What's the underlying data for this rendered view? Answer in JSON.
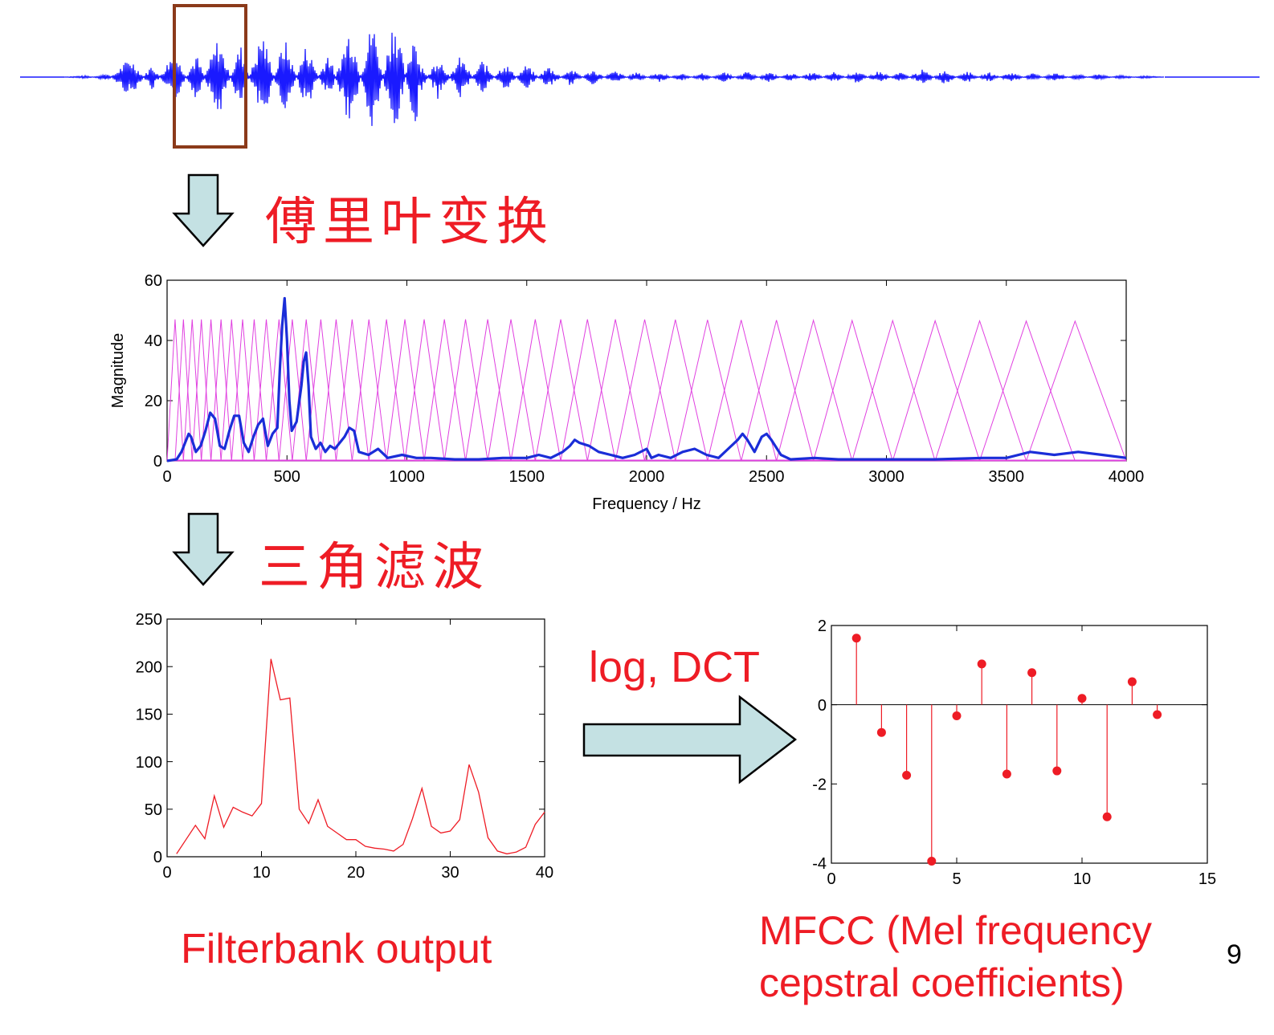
{
  "labels": {
    "fourier": "傅里叶变换",
    "triangle": "三角滤波",
    "log_dct": "log, DCT",
    "filterbank": "Filterbank output",
    "mfcc_line1": "MFCC (Mel frequency",
    "mfcc_line2": "cepstral coefficients)",
    "page_number": "9"
  },
  "colors": {
    "waveform": "#1a1aff",
    "window_box": "#8b3a1a",
    "arrow_fill": "#c4e1e3",
    "spectrum": "#1a2dd8",
    "filters": "#e040e0",
    "red": "#ee1c25"
  },
  "chart_data": [
    {
      "type": "line",
      "xlabel": "",
      "ylabel": "",
      "series": [
        {
          "values": [
            0,
            0.02,
            -0.05,
            0.3,
            -0.2,
            0.4,
            -0.35,
            0.6,
            -0.5,
            0.7,
            -0.6,
            0.5,
            -0.4,
            0.8,
            -0.9,
            1.0,
            -0.95,
            0.9,
            -0.85,
            0.7,
            -0.6,
            0.5,
            -0.45,
            0.35,
            -0.3,
            0.25,
            -0.2,
            0.2,
            -0.15,
            0.15,
            -0.2,
            0.22,
            -0.2,
            0.18,
            -0.2,
            0.22,
            -0.25,
            0.25,
            -0.2,
            0.3,
            -0.3,
            0.25,
            -0.2,
            0.2,
            -0.15,
            0.18,
            -0.12,
            0.12,
            -0.08,
            0.05,
            0
          ]
        }
      ]
    },
    {
      "type": "line",
      "xlabel": "Frequency / Hz",
      "ylabel": "Magnitude",
      "xlim": [
        0,
        4000
      ],
      "ylim": [
        0,
        60
      ],
      "xticks": [
        "0",
        "500",
        "1000",
        "1500",
        "2000",
        "2500",
        "3000",
        "3500",
        "4000"
      ],
      "yticks": [
        "0",
        "20",
        "40",
        "60"
      ],
      "grid": false,
      "series": [
        {
          "x": [
            0,
            40,
            60,
            80,
            90,
            100,
            120,
            140,
            160,
            180,
            200,
            220,
            240,
            260,
            280,
            300,
            320,
            340,
            360,
            380,
            400,
            420,
            440,
            460,
            470,
            480,
            490,
            500,
            510,
            520,
            540,
            560,
            570,
            580,
            590,
            600,
            620,
            640,
            660,
            680,
            700,
            720,
            740,
            760,
            780,
            800,
            840,
            880,
            920,
            980,
            1040,
            1100,
            1200,
            1300,
            1400,
            1500,
            1550,
            1600,
            1650,
            1680,
            1700,
            1720,
            1760,
            1800,
            1850,
            1900,
            1950,
            2000,
            2020,
            2050,
            2100,
            2150,
            2200,
            2250,
            2300,
            2340,
            2380,
            2400,
            2420,
            2450,
            2480,
            2500,
            2520,
            2560,
            2600,
            2700,
            2800,
            2900,
            3000,
            3200,
            3400,
            3500,
            3600,
            3700,
            3800,
            3900,
            4000
          ],
          "y": [
            0,
            0.5,
            3,
            7,
            9,
            8,
            3,
            5,
            10,
            16,
            14,
            5,
            4,
            10,
            15,
            15,
            6,
            3,
            8,
            12,
            14,
            5,
            9,
            11,
            30,
            45,
            54,
            40,
            20,
            10,
            13,
            25,
            33,
            36,
            25,
            8,
            4,
            6,
            3,
            5,
            4,
            6,
            8,
            11,
            10,
            3,
            2,
            4,
            1,
            2,
            1,
            1,
            0.5,
            0.5,
            1,
            1,
            2,
            1,
            3,
            5,
            7,
            6,
            5,
            3,
            2,
            1,
            2,
            4,
            1,
            2,
            1,
            3,
            4,
            2,
            1,
            4,
            7,
            9,
            7,
            3,
            8,
            9,
            7,
            2,
            0.5,
            1,
            0.5,
            0.5,
            0.5,
            0.5,
            1,
            1,
            3,
            2,
            3,
            2,
            1
          ]
        }
      ]
    },
    {
      "type": "line",
      "xlim": [
        0,
        40
      ],
      "ylim": [
        0,
        250
      ],
      "xticks": [
        "0",
        "10",
        "20",
        "30",
        "40"
      ],
      "yticks": [
        "0",
        "50",
        "100",
        "150",
        "200",
        "250"
      ],
      "title": "Filterbank output",
      "series": [
        {
          "x": [
            1,
            2,
            3,
            4,
            5,
            6,
            7,
            8,
            9,
            10,
            11,
            12,
            13,
            14,
            15,
            16,
            17,
            18,
            19,
            20,
            21,
            22,
            23,
            24,
            25,
            26,
            27,
            28,
            29,
            30,
            31,
            32,
            33,
            34,
            35,
            36,
            37,
            38,
            39,
            40
          ],
          "y": [
            3,
            18,
            33,
            19,
            64,
            31,
            52,
            47,
            43,
            56,
            208,
            165,
            167,
            50,
            35,
            60,
            32,
            25,
            18,
            18,
            11,
            9,
            8,
            6,
            13,
            40,
            72,
            32,
            25,
            27,
            39,
            97,
            68,
            20,
            6,
            3,
            5,
            10,
            34,
            47
          ]
        }
      ]
    },
    {
      "type": "scatter",
      "xlim": [
        0,
        15
      ],
      "ylim": [
        -4,
        2
      ],
      "xticks": [
        "0",
        "5",
        "10",
        "15"
      ],
      "yticks": [
        "-4",
        "-2",
        "0",
        "2"
      ],
      "title": "MFCC (Mel frequency cepstral coefficients)",
      "series": [
        {
          "x": [
            1,
            2,
            3,
            4,
            5,
            6,
            7,
            8,
            9,
            10,
            11,
            12,
            13
          ],
          "y": [
            1.68,
            -0.7,
            -1.78,
            -3.95,
            -0.28,
            1.03,
            -1.75,
            0.81,
            -1.67,
            0.16,
            -2.83,
            0.58,
            -0.25
          ]
        }
      ]
    }
  ]
}
